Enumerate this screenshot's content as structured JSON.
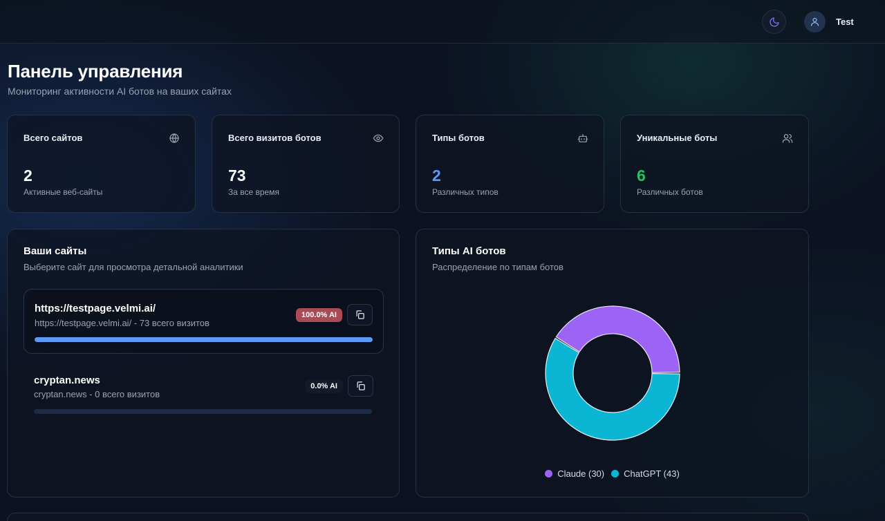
{
  "header": {
    "theme_icon": "moon-icon",
    "user_icon": "user-icon",
    "username": "Test"
  },
  "page": {
    "title": "Панель управления",
    "subtitle": "Мониторинг активности AI ботов на ваших сайтах"
  },
  "stats": [
    {
      "title": "Всего сайтов",
      "icon": "globe-icon",
      "value": "2",
      "caption": "Активные веб-сайты",
      "color": "#ffffff"
    },
    {
      "title": "Всего визитов ботов",
      "icon": "eye-icon",
      "value": "73",
      "caption": "За все время",
      "color": "#ffffff"
    },
    {
      "title": "Типы ботов",
      "icon": "bot-icon",
      "value": "2",
      "caption": "Различных типов",
      "color": "#5b9bf6"
    },
    {
      "title": "Уникальные боты",
      "icon": "users-icon",
      "value": "6",
      "caption": "Различных ботов",
      "color": "#22c55e"
    }
  ],
  "sites_panel": {
    "title": "Ваши сайты",
    "subtitle": "Выберите сайт для просмотра детальной аналитики",
    "sites": [
      {
        "name": "https://testpage.velmi.ai/",
        "meta": "https://testpage.velmi.ai/ - 73 всего визитов",
        "ai_label": "100.0% AI",
        "ai_fraction": 1.0,
        "badge_color": "#a94a55"
      },
      {
        "name": "cryptan.news",
        "meta": "cryptan.news - 0 всего визитов",
        "ai_label": "0.0% AI",
        "ai_fraction": 0.0,
        "badge_color": "#141a28"
      }
    ]
  },
  "bots_panel": {
    "title": "Типы AI ботов",
    "subtitle": "Распределение по типам ботов"
  },
  "chart_data": {
    "type": "pie",
    "categories": [
      "Claude",
      "ChatGPT"
    ],
    "values": [
      30,
      43
    ],
    "colors": [
      "#9d63f5",
      "#0ab6d3"
    ],
    "legend_labels": [
      "Claude (30)",
      "ChatGPT (43)"
    ],
    "legend_position": "bottom",
    "donut": true
  }
}
